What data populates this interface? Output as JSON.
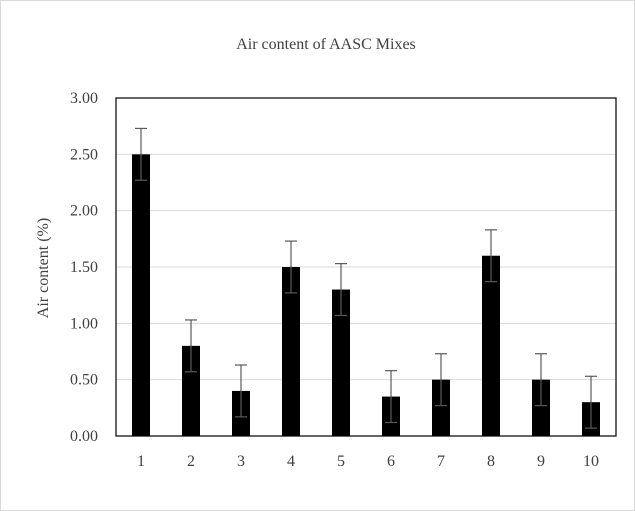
{
  "chart_data": {
    "type": "bar",
    "title": "Air content of AASC Mixes",
    "xlabel": "",
    "ylabel": "Air content (%)",
    "categories": [
      "1",
      "2",
      "3",
      "4",
      "5",
      "6",
      "7",
      "8",
      "9",
      "10"
    ],
    "values": [
      2.5,
      0.8,
      0.4,
      1.5,
      1.3,
      0.35,
      0.5,
      1.6,
      0.5,
      0.3
    ],
    "error_plus_minus": [
      0.23,
      0.23,
      0.23,
      0.23,
      0.23,
      0.23,
      0.23,
      0.23,
      0.23,
      0.23
    ],
    "ylim": [
      0,
      3
    ],
    "yticks": [
      "0.00",
      "0.50",
      "1.00",
      "1.50",
      "2.00",
      "2.50",
      "3.00"
    ],
    "grid": true,
    "legend": "none",
    "colors": {
      "bar": "#000000",
      "grid": "#d9d9d9",
      "axis": "#000000",
      "error_bar": "#595959",
      "text": "#404040"
    }
  }
}
